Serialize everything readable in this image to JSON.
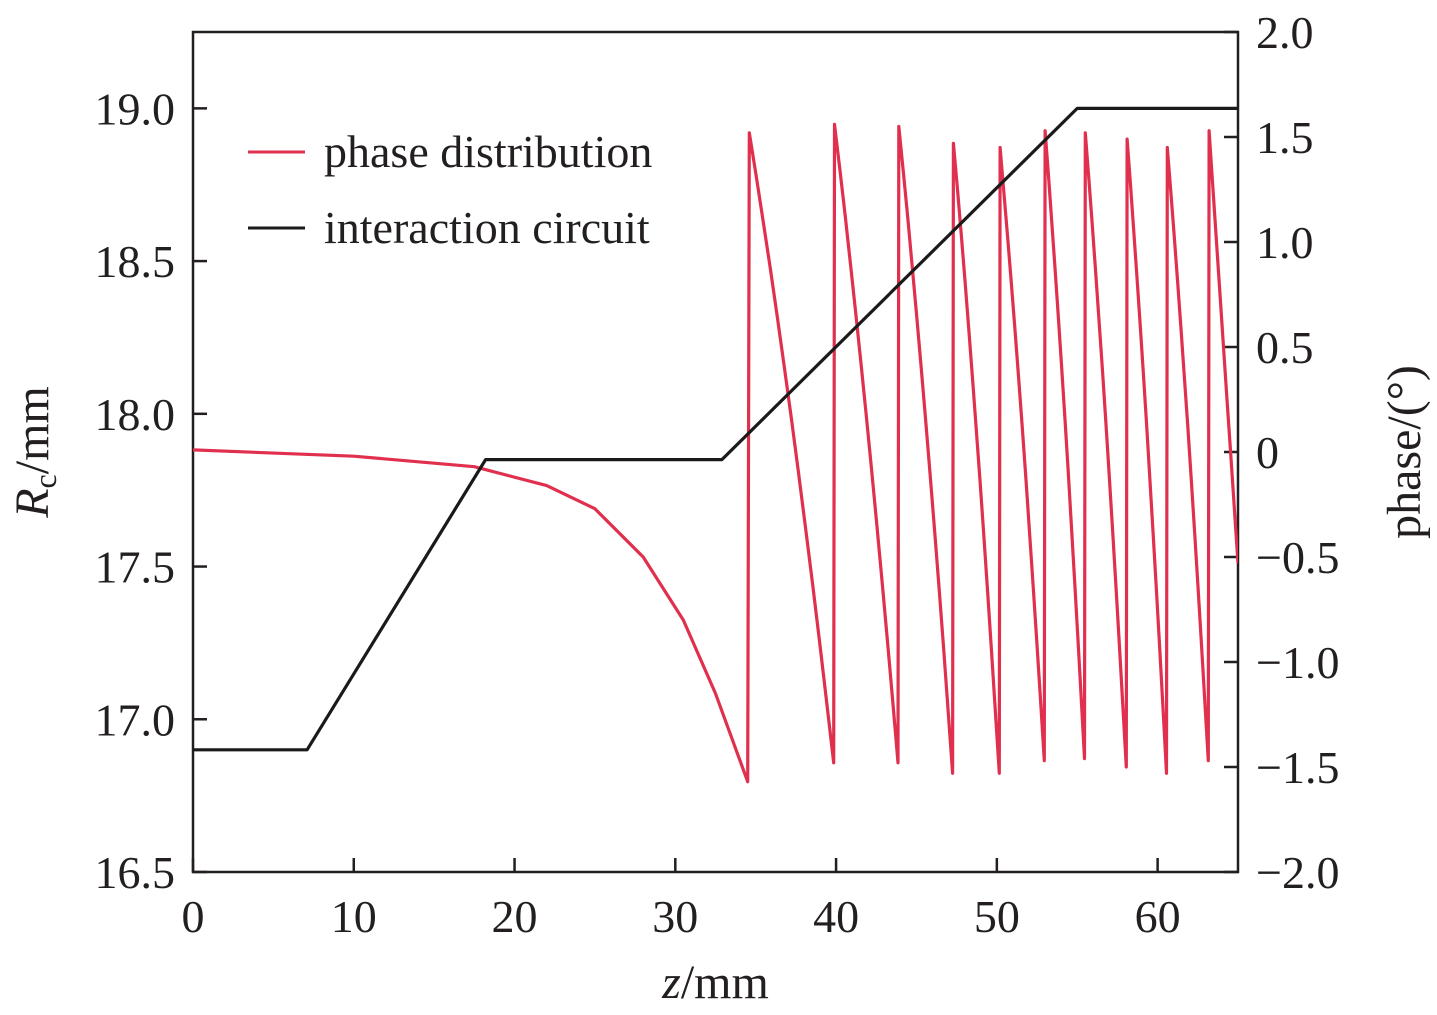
{
  "chart_data": {
    "type": "line",
    "xlabel": {
      "italic": "z",
      "rest": "/mm"
    },
    "ylabel_left": {
      "italic": "R",
      "sub": "c",
      "rest": "/mm"
    },
    "ylabel_right": "phase/(°)",
    "xlim": [
      0,
      65
    ],
    "ylim_left": [
      16.5,
      19.25
    ],
    "ylim_right": [
      -2.0,
      2.0
    ],
    "x_ticks": [
      "0",
      "10",
      "20",
      "30",
      "40",
      "50",
      "60"
    ],
    "x_tick_values": [
      0,
      10,
      20,
      30,
      40,
      50,
      60
    ],
    "y_left_ticks": [
      "16.5",
      "17.0",
      "17.5",
      "18.0",
      "18.5",
      "19.0"
    ],
    "y_left_tick_values": [
      16.5,
      17.0,
      17.5,
      18.0,
      18.5,
      19.0
    ],
    "y_right_ticks": [
      "−2.0",
      "−1.5",
      "−1.0",
      "−0.5",
      "0",
      "0.5",
      "1.0",
      "1.5",
      "2.0"
    ],
    "y_right_tick_values": [
      -2.0,
      -1.5,
      -1.0,
      -0.5,
      0,
      0.5,
      1.0,
      1.5,
      2.0
    ],
    "legend_position": "top-left",
    "colors": {
      "phase": "#e0304e",
      "circuit": "#1a1a1a",
      "axis": "#231f20"
    },
    "series": [
      {
        "name": "phase distribution",
        "axis": "right",
        "shape": "sawtooth",
        "decay_start_x": 0,
        "decay_start_y": 0.01,
        "decay_points": [
          [
            0,
            0.01
          ],
          [
            10,
            -0.02
          ],
          [
            17.5,
            -0.07
          ],
          [
            22,
            -0.16
          ],
          [
            25,
            -0.27
          ],
          [
            28,
            -0.5
          ],
          [
            30.5,
            -0.8
          ],
          [
            32.5,
            -1.15
          ],
          [
            34.5,
            -1.57
          ]
        ],
        "jumps": [
          {
            "x": 34.6,
            "top": 1.52,
            "bottom": -1.57
          },
          {
            "x": 39.9,
            "top": 1.56,
            "bottom": -1.48
          },
          {
            "x": 43.9,
            "top": 1.55,
            "bottom": -1.48
          },
          {
            "x": 47.3,
            "top": 1.47,
            "bottom": -1.53
          },
          {
            "x": 50.2,
            "top": 1.45,
            "bottom": -1.53
          },
          {
            "x": 53.0,
            "top": 1.53,
            "bottom": -1.47
          },
          {
            "x": 55.5,
            "top": 1.52,
            "bottom": -1.46
          },
          {
            "x": 58.1,
            "top": 1.49,
            "bottom": -1.5
          },
          {
            "x": 60.6,
            "top": 1.45,
            "bottom": -1.53
          },
          {
            "x": 63.2,
            "top": 1.53,
            "bottom": -1.47
          }
        ],
        "end": [
          65,
          -0.53
        ]
      },
      {
        "name": "interaction circuit",
        "axis": "left",
        "points": [
          [
            0,
            16.9
          ],
          [
            7.1,
            16.9
          ],
          [
            18.2,
            17.85
          ],
          [
            18.9,
            17.85
          ],
          [
            32.9,
            17.85
          ],
          [
            55,
            19.0
          ],
          [
            65,
            19.0
          ]
        ]
      }
    ]
  }
}
